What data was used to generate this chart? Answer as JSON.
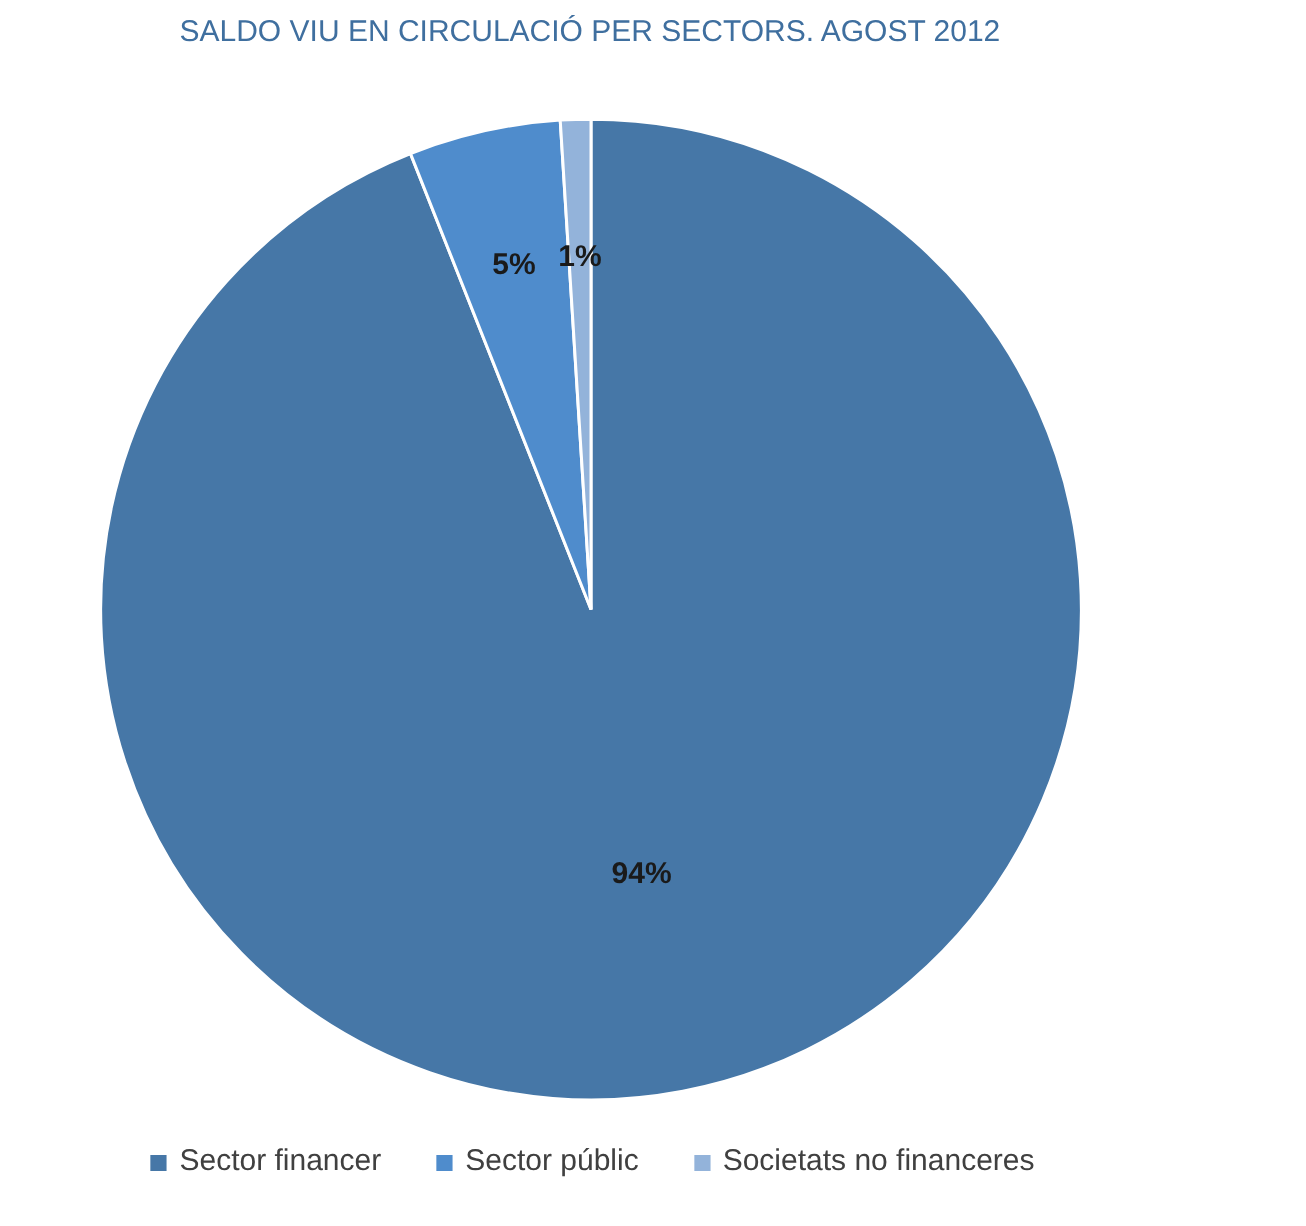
{
  "chart_data": {
    "type": "pie",
    "title": "SALDO VIU EN CIRCULACIÓ PER SECTORS. AGOST 2012",
    "categories": [
      "Sector financer",
      "Sector públic",
      "Societats no financeres"
    ],
    "values": [
      94,
      5,
      1
    ],
    "colors": [
      "#4677a7",
      "#4f8ccc",
      "#93b3da"
    ],
    "value_labels": [
      "94%",
      "5%",
      "1%"
    ],
    "legend": "bottom"
  }
}
